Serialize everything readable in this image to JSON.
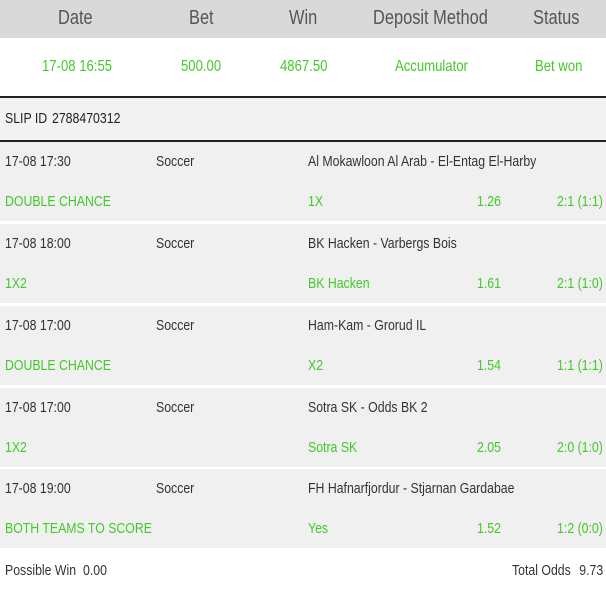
{
  "header": {
    "date": "Date",
    "bet": "Bet",
    "win": "Win",
    "deposit_method": "Deposit Method",
    "status": "Status"
  },
  "summary": {
    "date": "17-08 16:55",
    "bet": "500.00",
    "win": "4867.50",
    "method": "Accumulator",
    "status": "Bet won"
  },
  "slip": {
    "label": "SLIP ID",
    "id": "2788470312"
  },
  "selections": [
    {
      "datetime": "17-08 17:30",
      "sport": "Soccer",
      "match": "Al Mokawloon Al Arab - El-Entag El-Harby",
      "market": "DOUBLE CHANCE",
      "pick": "1X",
      "odds": "1.26",
      "result": "2:1 (1:1)"
    },
    {
      "datetime": "17-08 18:00",
      "sport": "Soccer",
      "match": "BK Hacken - Varbergs Bois",
      "market": "1X2",
      "pick": "BK Hacken",
      "odds": "1.61",
      "result": "2:1 (1:0)"
    },
    {
      "datetime": "17-08 17:00",
      "sport": "Soccer",
      "match": "Ham-Kam - Grorud IL",
      "market": "DOUBLE CHANCE",
      "pick": "X2",
      "odds": "1.54",
      "result": "1:1 (1:1)"
    },
    {
      "datetime": "17-08 17:00",
      "sport": "Soccer",
      "match": "Sotra SK - Odds BK 2",
      "market": "1X2",
      "pick": "Sotra SK",
      "odds": "2.05",
      "result": "2:0 (1:0)"
    },
    {
      "datetime": "17-08 19:00",
      "sport": "Soccer",
      "match": "FH Hafnarfjordur - Stjarnan Gardabae",
      "market": "BOTH TEAMS TO SCORE",
      "pick": "Yes",
      "odds": "1.52",
      "result": "1:2 (0:0)"
    }
  ],
  "footer": {
    "possible_win_label": "Possible Win",
    "possible_win_value": "0.00",
    "total_odds_label": "Total Odds",
    "total_odds_value": "9.73"
  },
  "colors": {
    "accent_green": "#43c92a",
    "header_bg": "#d9d9d9",
    "row_bg": "#f0f0f0"
  }
}
